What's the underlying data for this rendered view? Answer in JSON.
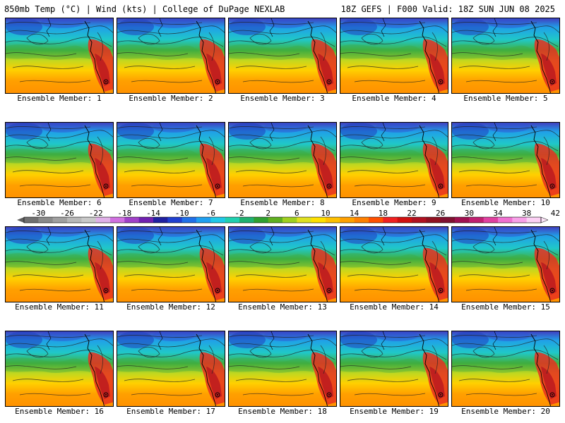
{
  "header": {
    "title": "850mb Temp (°C) | Wind (kts) | College of DuPage NEXLAB",
    "run_info": "18Z GEFS | F000 Valid: 18Z SUN JUN 08 2025"
  },
  "members": [
    {
      "label": "Ensemble Member: 1"
    },
    {
      "label": "Ensemble Member: 2"
    },
    {
      "label": "Ensemble Member: 3"
    },
    {
      "label": "Ensemble Member: 4"
    },
    {
      "label": "Ensemble Member: 5"
    },
    {
      "label": "Ensemble Member: 6"
    },
    {
      "label": "Ensemble Member: 7"
    },
    {
      "label": "Ensemble Member: 8"
    },
    {
      "label": "Ensemble Member: 9"
    },
    {
      "label": "Ensemble Member: 10"
    },
    {
      "label": "Ensemble Member: 11"
    },
    {
      "label": "Ensemble Member: 12"
    },
    {
      "label": "Ensemble Member: 13"
    },
    {
      "label": "Ensemble Member: 14"
    },
    {
      "label": "Ensemble Member: 15"
    },
    {
      "label": "Ensemble Member: 16"
    },
    {
      "label": "Ensemble Member: 17"
    },
    {
      "label": "Ensemble Member: 18"
    },
    {
      "label": "Ensemble Member: 19"
    },
    {
      "label": "Ensemble Member: 20"
    }
  ],
  "legend": {
    "tick_labels": [
      "-30",
      "-26",
      "-22",
      "-18",
      "-14",
      "-10",
      "-6",
      "-2",
      "2",
      "6",
      "10",
      "14",
      "18",
      "22",
      "26",
      "30",
      "34",
      "38",
      "42"
    ],
    "colors": [
      "#707070",
      "#8a8a8a",
      "#a0a0a0",
      "#b8b8b8",
      "#c8c8c8",
      "#e0b0e8",
      "#d070e0",
      "#a040c8",
      "#7020b0",
      "#2020a0",
      "#2040d0",
      "#2070e8",
      "#20a0f0",
      "#20c8e8",
      "#20d0b0",
      "#20b070",
      "#30a030",
      "#60b020",
      "#a0d020",
      "#e0e020",
      "#ffe000",
      "#ffc000",
      "#ffa000",
      "#ff8000",
      "#ff5000",
      "#f02020",
      "#d01010",
      "#b01020",
      "#901020",
      "#801030",
      "#a01050",
      "#c02070",
      "#e040a0",
      "#f070d0",
      "#f8a0e8",
      "#fcd0f4"
    ]
  }
}
